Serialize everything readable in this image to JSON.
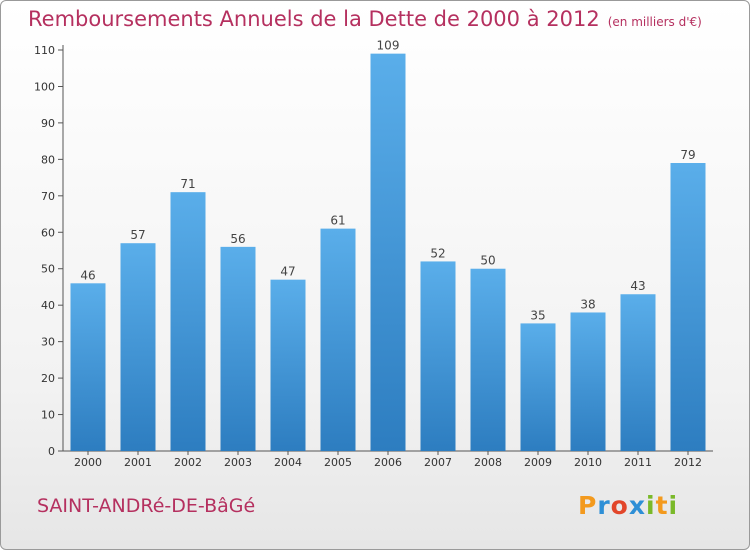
{
  "title": "Remboursements Annuels de la Dette de 2000 à 2012",
  "unit": "(en milliers d'€)",
  "commune": "SAINT-ANDRé-DE-BâGé",
  "logo": "Proxiti",
  "colors": {
    "title": "#b5305f",
    "bar_top": "#5aaeea",
    "bar_bottom": "#2d7dc0",
    "axis": "#555555"
  },
  "chart_data": {
    "type": "bar",
    "title": "Remboursements Annuels de la Dette de 2000 à 2012",
    "categories": [
      "2000",
      "2001",
      "2002",
      "2003",
      "2004",
      "2005",
      "2006",
      "2007",
      "2008",
      "2009",
      "2010",
      "2011",
      "2012"
    ],
    "values": [
      46,
      57,
      71,
      56,
      47,
      61,
      109,
      52,
      50,
      35,
      38,
      43,
      79
    ],
    "yticks": [
      0,
      10,
      20,
      30,
      40,
      50,
      60,
      70,
      80,
      90,
      100,
      110
    ],
    "ylim": [
      0,
      110
    ],
    "grid": false,
    "data_labels": true
  }
}
